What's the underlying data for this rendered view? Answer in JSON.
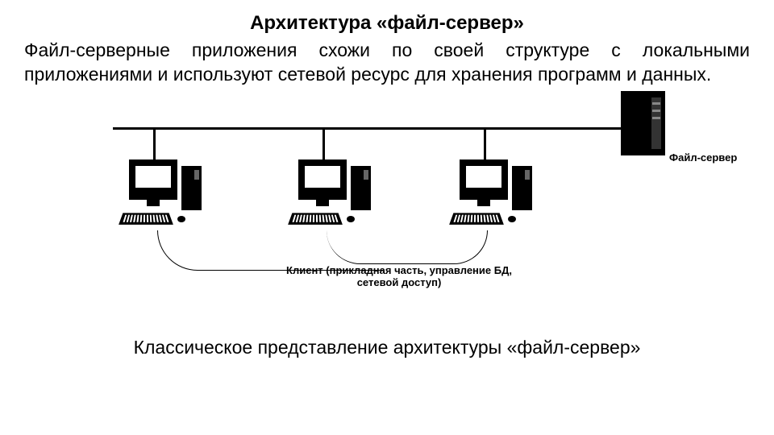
{
  "title": "Архитектура «файл-сервер»",
  "paragraph": "Файл-серверные приложения схожи по своей структуре с локальными приложениями и используют сетевой ресурс для хранения программ и данных.",
  "diagram": {
    "type": "network",
    "bus_color": "#000000",
    "background_color": "#ffffff",
    "line_width": 3,
    "nodes": {
      "server": {
        "label": "Файл-сервер",
        "color": "#000000",
        "label_fontsize": 13,
        "label_fontweight": "bold"
      },
      "clients": {
        "count": 3,
        "label": "Клиент (прикладная часть, управление БД, сетевой доступ)",
        "label_fontsize": 13,
        "label_fontweight": "bold",
        "color": "#000000"
      }
    }
  },
  "caption": "Классическое представление архитектуры «файл-сервер»"
}
